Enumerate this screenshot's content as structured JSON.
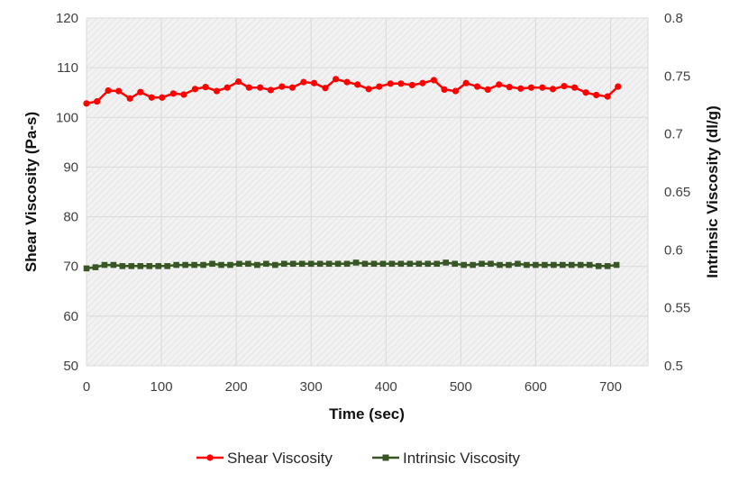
{
  "chart_data": {
    "type": "line",
    "xlabel": "Time (sec)",
    "ylabel_left": "Shear Viscosity (Pa-s)",
    "ylabel_right": "Intrinsic Viscosity (dl/g)",
    "xlim": [
      0,
      750
    ],
    "xticks": [
      0,
      100,
      200,
      300,
      400,
      500,
      600,
      700
    ],
    "ylim_left": [
      50,
      120
    ],
    "yticks_left": [
      50,
      60,
      70,
      80,
      90,
      100,
      110,
      120
    ],
    "ylim_right": [
      0.5,
      0.8
    ],
    "yticks_right": [
      "0.5",
      "0.55",
      "0.6",
      "0.65",
      "0.7",
      "0.75",
      "0.8"
    ],
    "grid": true,
    "legend_position": "bottom",
    "series": [
      {
        "name": "Shear Viscosity",
        "axis": "left",
        "color": "#ff0000",
        "marker": "circle",
        "x": [
          0,
          14,
          29,
          43,
          58,
          72,
          87,
          101,
          116,
          130,
          145,
          159,
          174,
          188,
          203,
          217,
          232,
          246,
          261,
          275,
          290,
          304,
          319,
          333,
          348,
          362,
          377,
          391,
          406,
          420,
          435,
          449,
          464,
          478,
          493,
          507,
          522,
          536,
          551,
          565,
          580,
          594,
          609,
          623,
          638,
          652,
          667,
          681,
          696,
          710
        ],
        "values": [
          102.8,
          103.2,
          105.4,
          105.3,
          103.8,
          105.1,
          104.0,
          104.0,
          104.8,
          104.6,
          105.7,
          106.1,
          105.3,
          106.0,
          107.2,
          106.0,
          106.0,
          105.5,
          106.2,
          106.0,
          107.1,
          106.9,
          105.9,
          107.7,
          107.1,
          106.6,
          105.7,
          106.2,
          106.8,
          106.8,
          106.5,
          106.9,
          107.5,
          105.6,
          105.3,
          106.9,
          106.2,
          105.6,
          106.6,
          106.1,
          105.8,
          106.0,
          106.0,
          105.7,
          106.3,
          106.0,
          105.0,
          104.5,
          104.2,
          106.2
        ]
      },
      {
        "name": "Intrinsic Viscosity",
        "axis": "right",
        "color": "#375623",
        "marker": "square",
        "x": [
          0,
          12,
          24,
          36,
          48,
          60,
          72,
          84,
          96,
          108,
          120,
          132,
          144,
          156,
          168,
          180,
          192,
          204,
          216,
          228,
          240,
          252,
          264,
          276,
          288,
          300,
          312,
          324,
          336,
          348,
          360,
          372,
          384,
          396,
          408,
          420,
          432,
          444,
          456,
          468,
          480,
          492,
          504,
          516,
          528,
          540,
          552,
          564,
          576,
          588,
          600,
          612,
          624,
          636,
          648,
          660,
          672,
          684,
          696,
          708
        ],
        "values": [
          0.584,
          0.585,
          0.587,
          0.587,
          0.586,
          0.586,
          0.586,
          0.586,
          0.586,
          0.586,
          0.587,
          0.587,
          0.587,
          0.587,
          0.588,
          0.587,
          0.587,
          0.588,
          0.588,
          0.587,
          0.588,
          0.587,
          0.588,
          0.588,
          0.588,
          0.588,
          0.588,
          0.588,
          0.588,
          0.588,
          0.589,
          0.588,
          0.588,
          0.588,
          0.588,
          0.588,
          0.588,
          0.588,
          0.588,
          0.588,
          0.589,
          0.588,
          0.587,
          0.587,
          0.588,
          0.588,
          0.587,
          0.587,
          0.588,
          0.587,
          0.587,
          0.587,
          0.587,
          0.587,
          0.587,
          0.587,
          0.587,
          0.586,
          0.586,
          0.587
        ]
      }
    ]
  }
}
